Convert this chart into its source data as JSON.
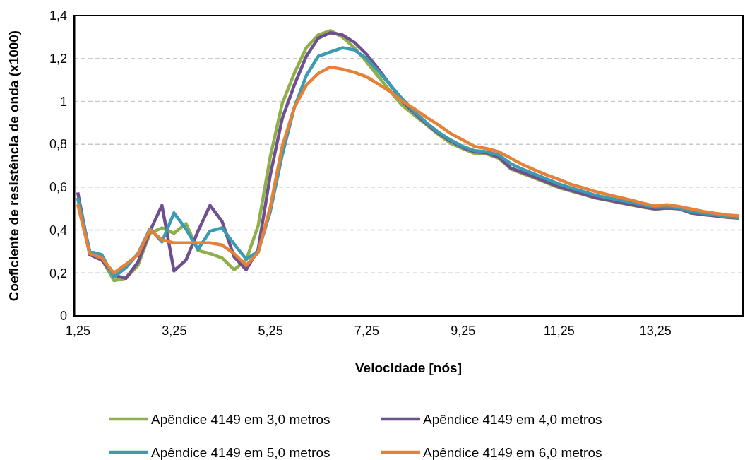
{
  "chart_data": {
    "type": "line",
    "xlabel": "Velocidade [nós]",
    "ylabel": "Coeficiente de resistência de onda (x1000)",
    "categories": [
      "1,25",
      null,
      null,
      null,
      null,
      null,
      null,
      null,
      "3,25",
      null,
      null,
      null,
      null,
      null,
      null,
      null,
      "5,25",
      null,
      null,
      null,
      null,
      null,
      null,
      null,
      "7,25",
      null,
      null,
      null,
      null,
      null,
      null,
      null,
      "9,25",
      null,
      null,
      null,
      null,
      null,
      null,
      null,
      "11,25",
      null,
      null,
      null,
      null,
      null,
      null,
      null,
      "13,25",
      null,
      null,
      null,
      null,
      null,
      null,
      null
    ],
    "ylim": [
      0,
      1.4
    ],
    "yticks": [
      0,
      {
        "value": 0.2,
        "label": "0,2"
      },
      {
        "value": 0.4,
        "label": "0,4"
      },
      {
        "value": 0.6,
        "label": "0,6"
      },
      {
        "value": 0.8,
        "label": "0,8"
      },
      1,
      {
        "value": 1.2,
        "label": "1,2"
      },
      {
        "value": 1.4,
        "label": "1,4"
      }
    ],
    "grid": "y",
    "legend": "bottom",
    "line_style": "solid",
    "marker": "none",
    "series": [
      {
        "name": "Apêndice 4149 em 3,0 metros",
        "color": "#8faf4a",
        "values": [
          0.55,
          0.29,
          0.265,
          0.165,
          0.175,
          0.235,
          0.385,
          0.41,
          0.385,
          0.43,
          0.305,
          0.29,
          0.27,
          0.215,
          0.26,
          0.42,
          0.74,
          0.99,
          1.13,
          1.25,
          1.31,
          1.33,
          1.3,
          1.25,
          1.185,
          1.115,
          1.045,
          0.98,
          0.935,
          0.89,
          0.845,
          0.805,
          0.78,
          0.757,
          0.755,
          0.735,
          0.685,
          0.663,
          0.642,
          0.62,
          0.598,
          0.582,
          0.566,
          0.55,
          0.539,
          0.528,
          0.517,
          0.506,
          0.497,
          0.502,
          0.499,
          0.479,
          0.472,
          0.466,
          0.459,
          0.455
        ]
      },
      {
        "name": "Apêndice 4149 em 4,0 metros",
        "color": "#6f508f",
        "values": [
          0.575,
          0.285,
          0.26,
          0.19,
          0.175,
          0.25,
          0.395,
          0.515,
          0.21,
          0.26,
          0.395,
          0.515,
          0.44,
          0.275,
          0.215,
          0.31,
          0.655,
          0.92,
          1.075,
          1.21,
          1.295,
          1.32,
          1.31,
          1.275,
          1.22,
          1.15,
          1.075,
          1.0,
          0.945,
          0.895,
          0.85,
          0.815,
          0.785,
          0.765,
          0.76,
          0.74,
          0.69,
          0.668,
          0.646,
          0.624,
          0.602,
          0.585,
          0.569,
          0.552,
          0.541,
          0.53,
          0.519,
          0.508,
          0.499,
          0.503,
          0.5,
          0.48,
          0.473,
          0.467,
          0.46,
          0.456
        ]
      },
      {
        "name": "Apêndice 4149 em 5,0 metros",
        "color": "#3c9ab2",
        "values": [
          0.55,
          0.3,
          0.285,
          0.18,
          0.225,
          0.29,
          0.405,
          0.345,
          0.48,
          0.405,
          0.31,
          0.395,
          0.41,
          0.335,
          0.265,
          0.3,
          0.485,
          0.75,
          0.97,
          1.12,
          1.21,
          1.23,
          1.25,
          1.24,
          1.2,
          1.14,
          1.075,
          1.01,
          0.95,
          0.9,
          0.855,
          0.82,
          0.79,
          0.77,
          0.765,
          0.75,
          0.71,
          0.683,
          0.66,
          0.638,
          0.615,
          0.597,
          0.58,
          0.563,
          0.551,
          0.54,
          0.529,
          0.517,
          0.506,
          0.507,
          0.503,
          0.486,
          0.478,
          0.471,
          0.463,
          0.458
        ]
      },
      {
        "name": "Apêndice 4149 em 6,0 metros",
        "color": "#e5823a",
        "values": [
          0.52,
          0.29,
          0.27,
          0.2,
          0.24,
          0.285,
          0.4,
          0.355,
          0.34,
          0.34,
          0.34,
          0.34,
          0.33,
          0.29,
          0.235,
          0.295,
          0.505,
          0.79,
          0.97,
          1.075,
          1.13,
          1.16,
          1.15,
          1.135,
          1.115,
          1.08,
          1.045,
          1.0,
          0.965,
          0.925,
          0.89,
          0.85,
          0.82,
          0.79,
          0.78,
          0.765,
          0.735,
          0.705,
          0.68,
          0.657,
          0.636,
          0.613,
          0.597,
          0.58,
          0.566,
          0.553,
          0.54,
          0.525,
          0.512,
          0.518,
          0.51,
          0.498,
          0.487,
          0.478,
          0.47,
          0.466
        ]
      }
    ]
  }
}
